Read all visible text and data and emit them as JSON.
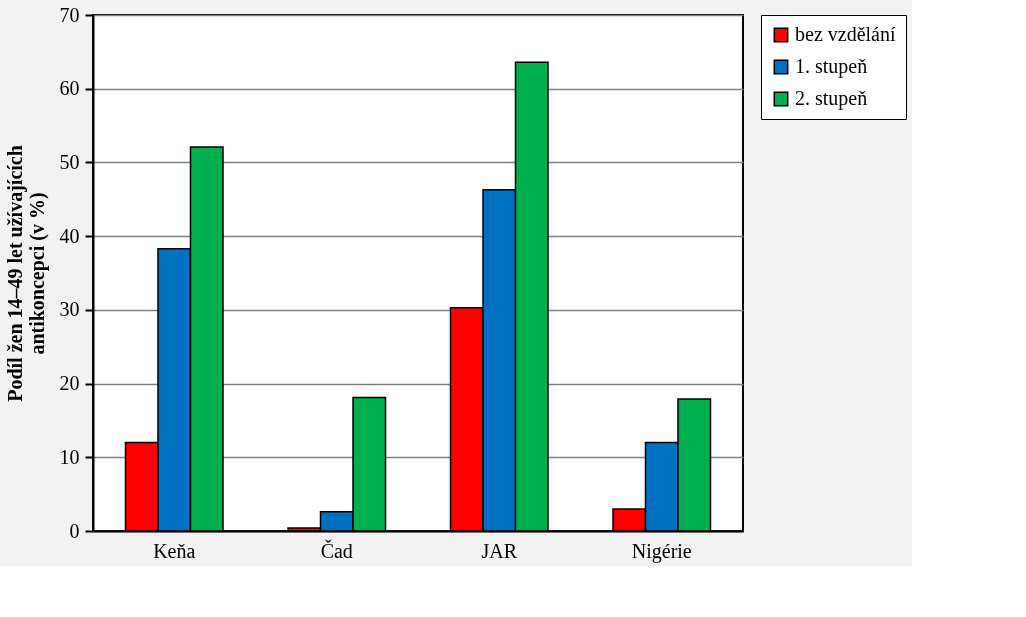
{
  "chart_data": {
    "type": "bar",
    "ylabel": "Podíl žen 14–49 let užívajících\nantikoncepci (v %)",
    "categories": [
      "Keňa",
      "Čad",
      "JAR",
      "Nigérie"
    ],
    "series": [
      {
        "name": "bez vzdělání",
        "color": "#ff0000",
        "values": [
          12,
          0.4,
          30.3,
          3.0
        ]
      },
      {
        "name": "1. stupeň",
        "color": "#0070c0",
        "values": [
          38.3,
          2.6,
          46.3,
          12.0
        ]
      },
      {
        "name": "2. stupeň",
        "color": "#00b050",
        "values": [
          52.1,
          18.1,
          63.6,
          17.9
        ]
      }
    ],
    "ylim": [
      0,
      70
    ],
    "yticks": [
      0,
      10,
      20,
      30,
      40,
      50,
      60,
      70
    ],
    "grid": "y",
    "legend": "right"
  }
}
